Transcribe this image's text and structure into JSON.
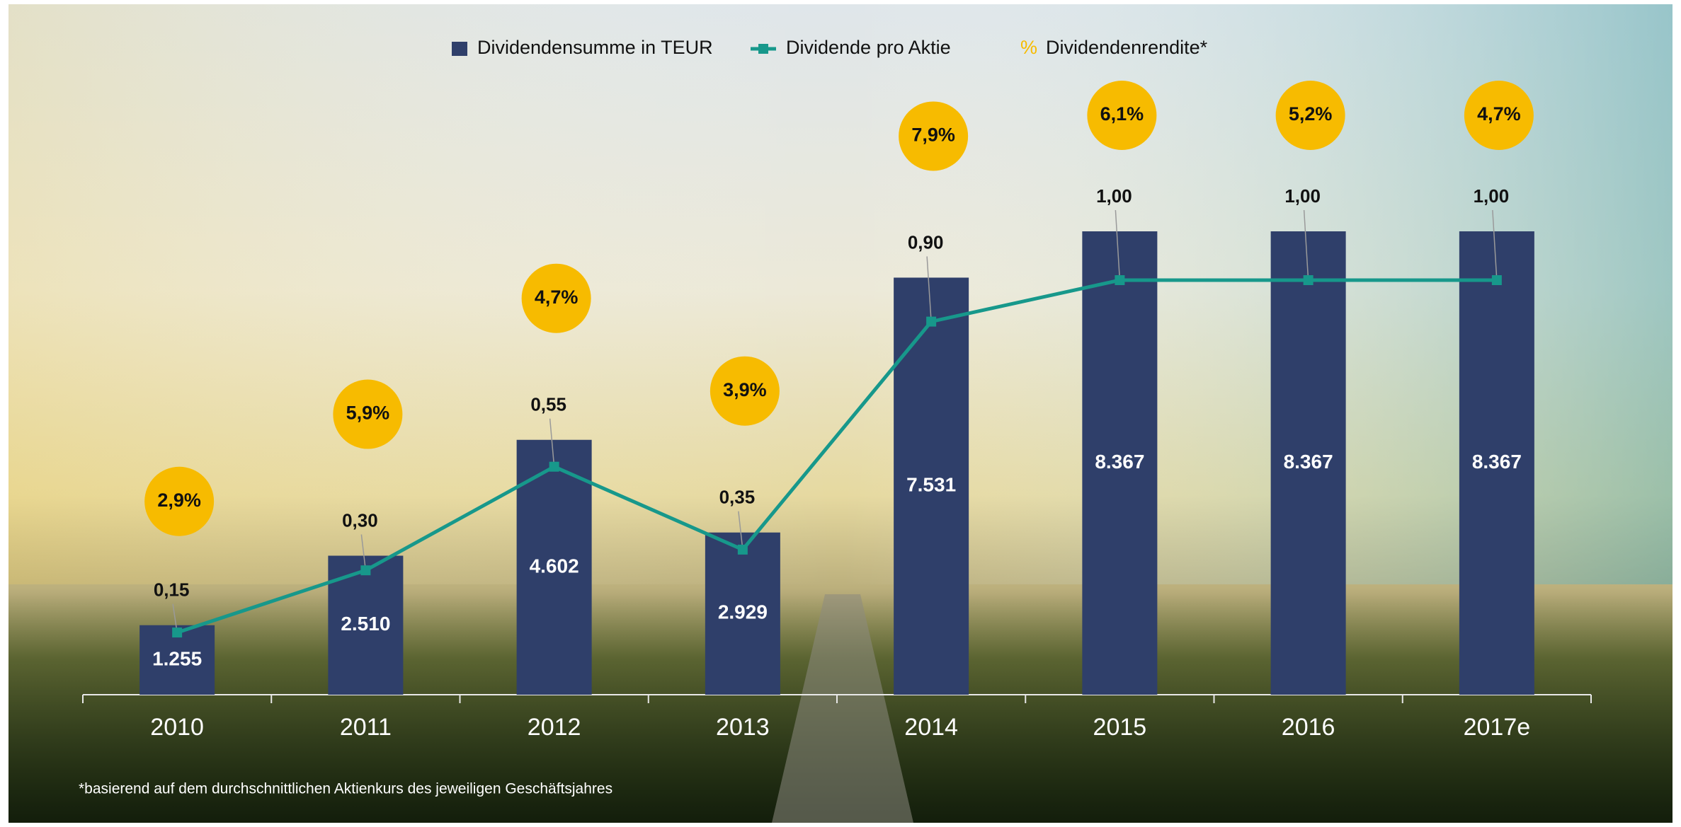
{
  "chart_data": {
    "type": "combo",
    "categories": [
      "2010",
      "2011",
      "2012",
      "2013",
      "2014",
      "2015",
      "2016",
      "2017e"
    ],
    "series": [
      {
        "name": "Dividendensumme in TEUR",
        "type": "bar",
        "color": "#2f3f6a",
        "values": [
          1255,
          2510,
          4602,
          2929,
          7531,
          8367,
          8367,
          8367
        ],
        "value_labels": [
          "1.255",
          "2.510",
          "4.602",
          "2.929",
          "7.531",
          "8.367",
          "8.367",
          "8.367"
        ]
      },
      {
        "name": "Dividende pro Aktie",
        "type": "line",
        "color": "#17988b",
        "values": [
          0.15,
          0.3,
          0.55,
          0.35,
          0.9,
          1.0,
          1.0,
          1.0
        ],
        "value_labels": [
          "0,15",
          "0,30",
          "0,55",
          "0,35",
          "0,90",
          "1,00",
          "1,00",
          "1,00"
        ]
      },
      {
        "name": "Dividendenrendite*",
        "type": "badge",
        "color": "#f7bb00",
        "marker": "%",
        "values": [
          2.9,
          5.9,
          4.7,
          3.9,
          7.9,
          6.1,
          5.2,
          4.7
        ],
        "value_labels": [
          "2,9%",
          "5,9%",
          "4,7%",
          "3,9%",
          "7,9%",
          "6,1%",
          "5,2%",
          "4,7%"
        ]
      }
    ],
    "footnote": "*basierend auf dem durchschnittlichen Aktienkurs des jeweiligen Geschäftsjahres"
  }
}
